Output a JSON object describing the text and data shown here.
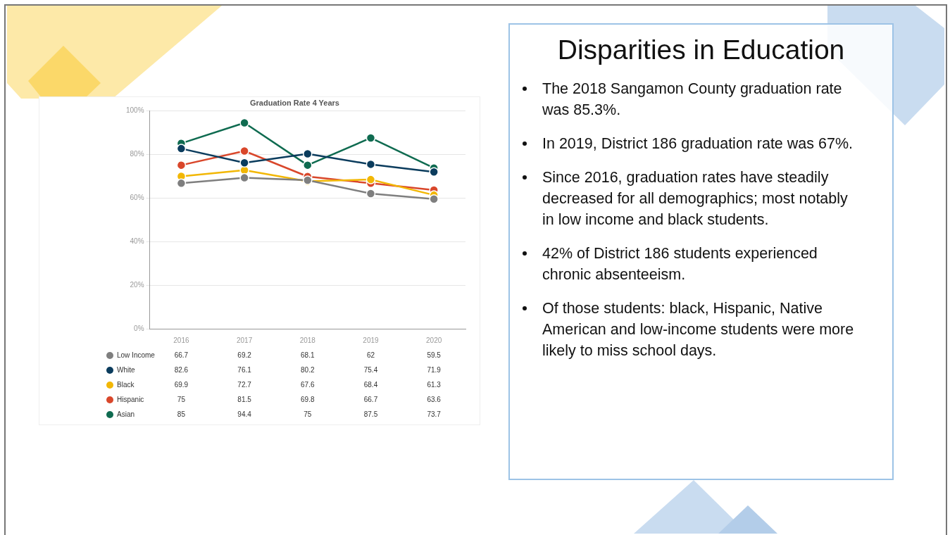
{
  "chart_data": [
    {
      "type": "line",
      "title": "Graduation Rate 4 Years",
      "categories": [
        "2016",
        "2017",
        "2018",
        "2019",
        "2020"
      ],
      "series": [
        {
          "name": "Low Income",
          "color": "#7f7f7f",
          "values": [
            66.7,
            69.2,
            68.1,
            62,
            59.5
          ]
        },
        {
          "name": "White",
          "color": "#0b3c5d",
          "values": [
            82.6,
            76.1,
            80.2,
            75.4,
            71.9
          ]
        },
        {
          "name": "Black",
          "color": "#f2b705",
          "values": [
            69.9,
            72.7,
            67.6,
            68.4,
            61.3
          ]
        },
        {
          "name": "Hispanic",
          "color": "#d9472b",
          "values": [
            75,
            81.5,
            69.8,
            66.7,
            63.6
          ]
        },
        {
          "name": "Asian",
          "color": "#0f6b50",
          "values": [
            85,
            94.4,
            75,
            87.5,
            73.7
          ]
        }
      ],
      "ylim": [
        0,
        100
      ],
      "yticks": [
        {
          "value": 0,
          "label": "0%"
        },
        {
          "value": 20,
          "label": "20%"
        },
        {
          "value": 40,
          "label": "40%"
        },
        {
          "value": 60,
          "label": "60%"
        },
        {
          "value": 80,
          "label": "80%"
        },
        {
          "value": 100,
          "label": "100%"
        }
      ],
      "grid": "y",
      "marker": "circle",
      "data_labels": true,
      "legend": "bottom"
    },
    {
      "type": "other",
      "title": "Disparities in Education",
      "annotations": [
        "The 2018 Sangamon County graduation rate was 85.3%.",
        "In 2019, District 186 graduation rate was 67%.",
        "Since 2016, graduation rates have steadily decreased for all demographics; most notably in low income and black students.",
        "42% of District 186 students experienced chronic absenteeism.",
        "Of those students: black, Hispanic, Native American and low-income students were more likely to miss school days."
      ]
    }
  ]
}
